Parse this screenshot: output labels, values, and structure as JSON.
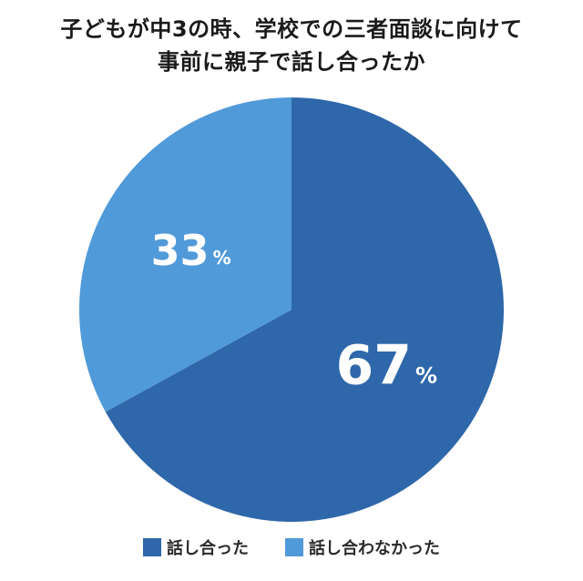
{
  "chart_data": {
    "type": "pie",
    "title_lines": [
      "子どもが中3の時、学校での三者面談に向けて",
      "事前に親子で話し合ったか"
    ],
    "slices": [
      {
        "label": "話し合った",
        "value": 67,
        "display": "67",
        "unit": "%",
        "color": "#2e67aa"
      },
      {
        "label": "話し合わなかった",
        "value": 33,
        "display": "33",
        "unit": "%",
        "color": "#519ad9"
      }
    ],
    "start_angle_deg": 0,
    "direction": "clockwise",
    "legend_position": "bottom-center"
  }
}
